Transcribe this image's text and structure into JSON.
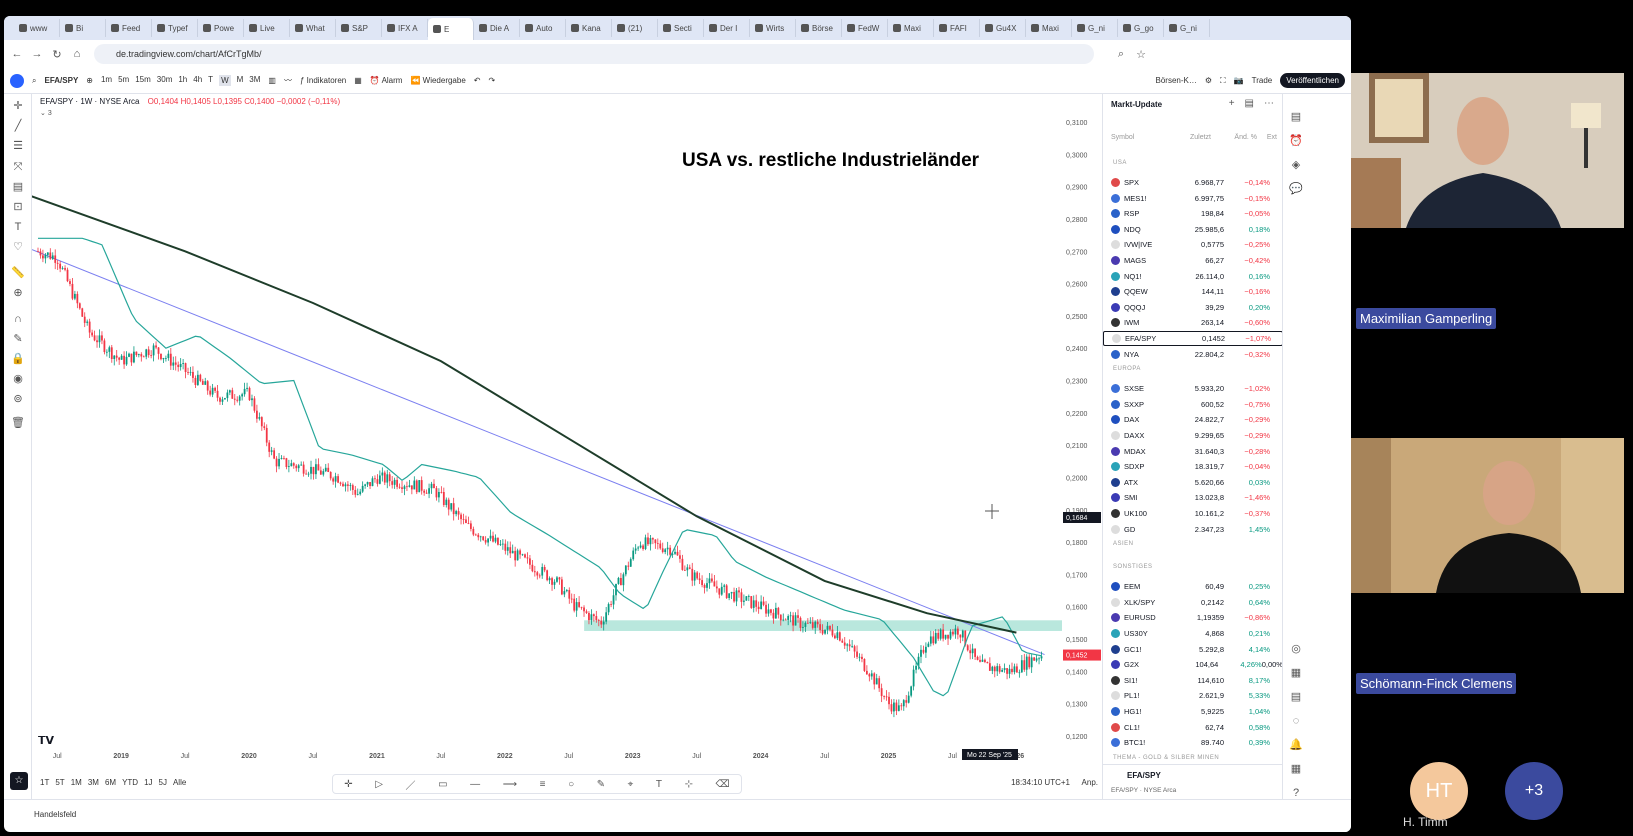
{
  "browser": {
    "tabs": [
      "www",
      "Bi",
      "Feed",
      "Typef",
      "Powe",
      "Live",
      "What",
      "S&P",
      "IFX A",
      "E",
      "Die A",
      "Auto",
      "Kana",
      "(21)",
      "Secti",
      "Der I",
      "Wirts",
      "Börse",
      "FedW",
      "Maxi",
      "FAFI",
      "Gu4X",
      "Maxi",
      "G_ni",
      "G_go",
      "G_ni"
    ],
    "active_tab_index": 9,
    "url": "de.tradingview.com/chart/AfCrTgMb/"
  },
  "toolbar": {
    "symbol": "EFA/SPY",
    "intervals": [
      "1m",
      "5m",
      "15m",
      "30m",
      "1h",
      "4h",
      "T",
      "W",
      "M",
      "3M"
    ],
    "indicators": "Indikatoren",
    "alarm": "Alarm",
    "replay": "Wiedergabe",
    "exchange": "Börsen-K…",
    "trade": "Trade",
    "publish": "Veröffentlichen"
  },
  "chart": {
    "legend": "EFA/SPY · 1W · NYSE Arca",
    "ohlc": "O0,1404 H0,1405 L0,1395 C0,1400 −0,0002 (−0,11%)",
    "indicator_count": "3",
    "title": "USA vs. restliche Industrieländer",
    "cursor_price": "0,1684",
    "last_price": "0,1452",
    "cursor_date": "Mo 22 Sep '25",
    "price_ticks": [
      "0,3100",
      "0,3000",
      "0,2900",
      "0,2800",
      "0,2700",
      "0,2600",
      "0,2500",
      "0,2400",
      "0,2300",
      "0,2200",
      "0,2100",
      "0,2000",
      "0,1900",
      "0,1800",
      "0,1700",
      "0,1600",
      "0,1500",
      "0,1400",
      "0,1300",
      "0,1200"
    ],
    "time_ticks": [
      "Jul",
      "2019",
      "Jul",
      "2020",
      "Jul",
      "2021",
      "Jul",
      "2022",
      "Jul",
      "2023",
      "Jul",
      "2024",
      "Jul",
      "2025",
      "Jul",
      "2026"
    ],
    "ranges": [
      "1T",
      "5T",
      "1M",
      "3M",
      "6M",
      "YTD",
      "1J",
      "5J",
      "Alle"
    ],
    "clock": "18:34:10 UTC+1",
    "adj": "Anp.",
    "status_left": "Handelsfeld"
  },
  "watchlist": {
    "title": "Markt-Update",
    "headers": [
      "Symbol",
      "Zuletzt",
      "Änd. %",
      "Ext"
    ],
    "sections": [
      {
        "name": "USA",
        "rows": [
          {
            "s": "SPX",
            "l": "6.968,77",
            "c": "−0,14%"
          },
          {
            "s": "MES1!",
            "l": "6.997,75",
            "c": "−0,15%"
          },
          {
            "s": "RSP",
            "l": "198,84",
            "c": "−0,05%"
          },
          {
            "s": "NDQ",
            "l": "25.985,6",
            "c": "0,18%"
          },
          {
            "s": "IVW|IVE",
            "l": "0,5775",
            "c": "−0,25%"
          },
          {
            "s": "MAGS",
            "l": "66,27",
            "c": "−0,42%"
          },
          {
            "s": "NQ1!",
            "l": "26.114,0",
            "c": "0,16%"
          },
          {
            "s": "QQEW",
            "l": "144,11",
            "c": "−0,16%"
          },
          {
            "s": "QQQJ",
            "l": "39,29",
            "c": "0,20%"
          },
          {
            "s": "IWM",
            "l": "263,14",
            "c": "−0,60%"
          },
          {
            "s": "EFA/SPY",
            "l": "0,1452",
            "c": "−1,07%"
          },
          {
            "s": "NYA",
            "l": "22.804,2",
            "c": "−0,32%"
          }
        ]
      },
      {
        "name": "EUROPA",
        "rows": [
          {
            "s": "SXSE",
            "l": "5.933,20",
            "c": "−1,02%"
          },
          {
            "s": "SXXP",
            "l": "600,52",
            "c": "−0,75%"
          },
          {
            "s": "DAX",
            "l": "24.822,7",
            "c": "−0,29%"
          },
          {
            "s": "DAXX",
            "l": "9.299,65",
            "c": "−0,29%"
          },
          {
            "s": "MDAX",
            "l": "31.640,3",
            "c": "−0,28%"
          },
          {
            "s": "SDXP",
            "l": "18.319,7",
            "c": "−0,04%"
          },
          {
            "s": "ATX",
            "l": "5.620,66",
            "c": "0,03%"
          },
          {
            "s": "SMI",
            "l": "13.023,8",
            "c": "−1,46%"
          },
          {
            "s": "UK100",
            "l": "10.161,2",
            "c": "−0,37%"
          },
          {
            "s": "GD",
            "l": "2.347,23",
            "c": "1,45%"
          }
        ]
      },
      {
        "name": "ASIEN",
        "rows": []
      },
      {
        "name": "SONSTIGES",
        "rows": [
          {
            "s": "EEM",
            "l": "60,49",
            "c": "0,25%"
          },
          {
            "s": "XLK/SPY",
            "l": "0,2142",
            "c": "0,64%"
          },
          {
            "s": "EURUSD",
            "l": "1,19359",
            "c": "−0,86%"
          },
          {
            "s": "US30Y",
            "l": "4,868",
            "c": "0,21%"
          },
          {
            "s": "GC1!",
            "l": "5.292,8",
            "c": "4,14%"
          },
          {
            "s": "G2X",
            "l": "104,64",
            "c": "4,26%",
            "e": "0,00%"
          },
          {
            "s": "SI1!",
            "l": "114,610",
            "c": "8,17%"
          },
          {
            "s": "PL1!",
            "l": "2.621,9",
            "c": "5,33%"
          },
          {
            "s": "HG1!",
            "l": "5,9225",
            "c": "1,04%"
          },
          {
            "s": "CL1!",
            "l": "62,74",
            "c": "0,58%"
          },
          {
            "s": "BTC1!",
            "l": "89.740",
            "c": "0,39%"
          }
        ]
      },
      {
        "name": "THEMA - GOLD & SILBER MINEN",
        "rows": []
      }
    ],
    "detail_symbol": "EFA/SPY",
    "detail_sub": "EFA/SPY · NYSE Arca"
  },
  "participants": {
    "p1": "Maximilian Gamperling",
    "p2": "Schömann-Finck Clemens",
    "p3_initials": "HT",
    "p3_name": "H. Timm",
    "more": "+3"
  }
}
